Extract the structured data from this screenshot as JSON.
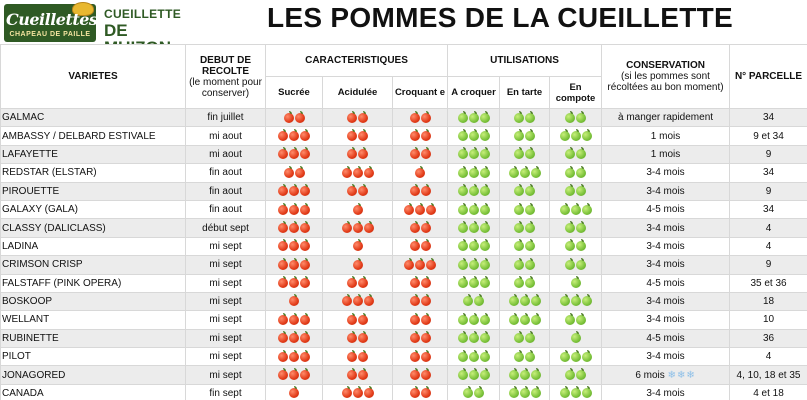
{
  "logo": {
    "line1": "Cueillettes",
    "line2": "CHAPEAU DE PAILLE"
  },
  "brand": {
    "line1": "CUEILLETTE",
    "line2": "DE MUIZON"
  },
  "title": "LES POMMES DE LA CUEILLETTE",
  "colors": {
    "brand_green": "#2f5a24",
    "apple_red": "#e23b18",
    "apple_green": "#7bc23a",
    "frost": "#8fc0e8"
  },
  "icons": {
    "red": "red-apple-icon",
    "green": "green-apple-icon",
    "frost": "snowflake-icon"
  },
  "headers": {
    "varietes": "VARIETES",
    "debut_title": "DEBUT DE RECOLTE",
    "debut_sub": "(le moment pour conserver)",
    "caracteristiques": "CARACTERISTIQUES",
    "utilisations": "UTILISATIONS",
    "conservation_title": "CONSERVATION",
    "conservation_sub": "(si les pommes sont récoltées au bon moment)",
    "parcelle": "N° PARCELLE",
    "sucree": "Sucrée",
    "acidulee": "Acidulée",
    "croquante": "Croquant e",
    "a_croquer": "A croquer",
    "en_tarte": "En tarte",
    "en_compote": "En compote"
  },
  "rows": [
    {
      "variety": "GALMAC",
      "debut": "fin juillet",
      "sucree": 2,
      "acidulee": 2,
      "croquante": 2,
      "croquer": 3,
      "tarte": 2,
      "compote": 2,
      "conservation": "à manger rapidement",
      "frost": "",
      "parcelle": "34"
    },
    {
      "variety": "AMBASSY / DELBARD ESTIVALE",
      "debut": "mi aout",
      "sucree": 3,
      "acidulee": 2,
      "croquante": 2,
      "croquer": 3,
      "tarte": 2,
      "compote": 3,
      "conservation": "1 mois",
      "frost": "",
      "parcelle": "9 et 34"
    },
    {
      "variety": "LAFAYETTE",
      "debut": "mi aout",
      "sucree": 3,
      "acidulee": 2,
      "croquante": 2,
      "croquer": 3,
      "tarte": 2,
      "compote": 2,
      "conservation": "1 mois",
      "frost": "",
      "parcelle": "9"
    },
    {
      "variety": "REDSTAR (ELSTAR)",
      "debut": "fin aout",
      "sucree": 2,
      "acidulee": 3,
      "croquante": 1,
      "croquer": 3,
      "tarte": 3,
      "compote": 2,
      "conservation": "3-4 mois",
      "frost": "",
      "parcelle": "34"
    },
    {
      "variety": "PIROUETTE",
      "debut": "fin aout",
      "sucree": 3,
      "acidulee": 2,
      "croquante": 2,
      "croquer": 3,
      "tarte": 2,
      "compote": 2,
      "conservation": "3-4 mois",
      "frost": "",
      "parcelle": "9"
    },
    {
      "variety": "GALAXY (GALA)",
      "debut": "fin aout",
      "sucree": 3,
      "acidulee": 1,
      "croquante": 3,
      "croquer": 3,
      "tarte": 2,
      "compote": 3,
      "conservation": "4-5 mois",
      "frost": "",
      "parcelle": "34"
    },
    {
      "variety": "CLASSY (DALICLASS)",
      "debut": "début sept",
      "sucree": 3,
      "acidulee": 3,
      "croquante": 2,
      "croquer": 3,
      "tarte": 2,
      "compote": 2,
      "conservation": "3-4 mois",
      "frost": "",
      "parcelle": "4"
    },
    {
      "variety": "LADINA",
      "debut": "mi sept",
      "sucree": 3,
      "acidulee": 1,
      "croquante": 2,
      "croquer": 3,
      "tarte": 2,
      "compote": 2,
      "conservation": "3-4 mois",
      "frost": "",
      "parcelle": "4"
    },
    {
      "variety": "CRIMSON CRISP",
      "debut": "mi sept",
      "sucree": 3,
      "acidulee": 1,
      "croquante": 3,
      "croquer": 3,
      "tarte": 2,
      "compote": 2,
      "conservation": "3-4 mois",
      "frost": "",
      "parcelle": "9"
    },
    {
      "variety": "FALSTAFF (PINK OPERA)",
      "debut": "mi sept",
      "sucree": 3,
      "acidulee": 2,
      "croquante": 2,
      "croquer": 3,
      "tarte": 2,
      "compote": 1,
      "conservation": "4-5 mois",
      "frost": "",
      "parcelle": "35 et 36"
    },
    {
      "variety": "BOSKOOP",
      "debut": "mi sept",
      "sucree": 1,
      "acidulee": 3,
      "croquante": 2,
      "croquer": 2,
      "tarte": 3,
      "compote": 3,
      "conservation": "3-4 mois",
      "frost": "",
      "parcelle": "18"
    },
    {
      "variety": "WELLANT",
      "debut": "mi sept",
      "sucree": 3,
      "acidulee": 2,
      "croquante": 2,
      "croquer": 3,
      "tarte": 3,
      "compote": 2,
      "conservation": "3-4 mois",
      "frost": "",
      "parcelle": "10"
    },
    {
      "variety": "RUBINETTE",
      "debut": "mi sept",
      "sucree": 3,
      "acidulee": 2,
      "croquante": 2,
      "croquer": 3,
      "tarte": 2,
      "compote": 1,
      "conservation": "4-5 mois",
      "frost": "",
      "parcelle": "36"
    },
    {
      "variety": "PILOT",
      "debut": "mi sept",
      "sucree": 3,
      "acidulee": 2,
      "croquante": 2,
      "croquer": 3,
      "tarte": 2,
      "compote": 3,
      "conservation": "3-4 mois",
      "frost": "",
      "parcelle": "4"
    },
    {
      "variety": "JONAGORED",
      "debut": "mi sept",
      "sucree": 3,
      "acidulee": 2,
      "croquante": 2,
      "croquer": 3,
      "tarte": 3,
      "compote": 2,
      "conservation": "6 mois",
      "frost": "❄❄❄",
      "parcelle": "4, 10, 18 et 35"
    },
    {
      "variety": "CANADA",
      "debut": "fin sept",
      "sucree": 1,
      "acidulee": 3,
      "croquante": 2,
      "croquer": 2,
      "tarte": 3,
      "compote": 3,
      "conservation": "3-4 mois",
      "frost": "",
      "parcelle": "4 et 18"
    }
  ]
}
